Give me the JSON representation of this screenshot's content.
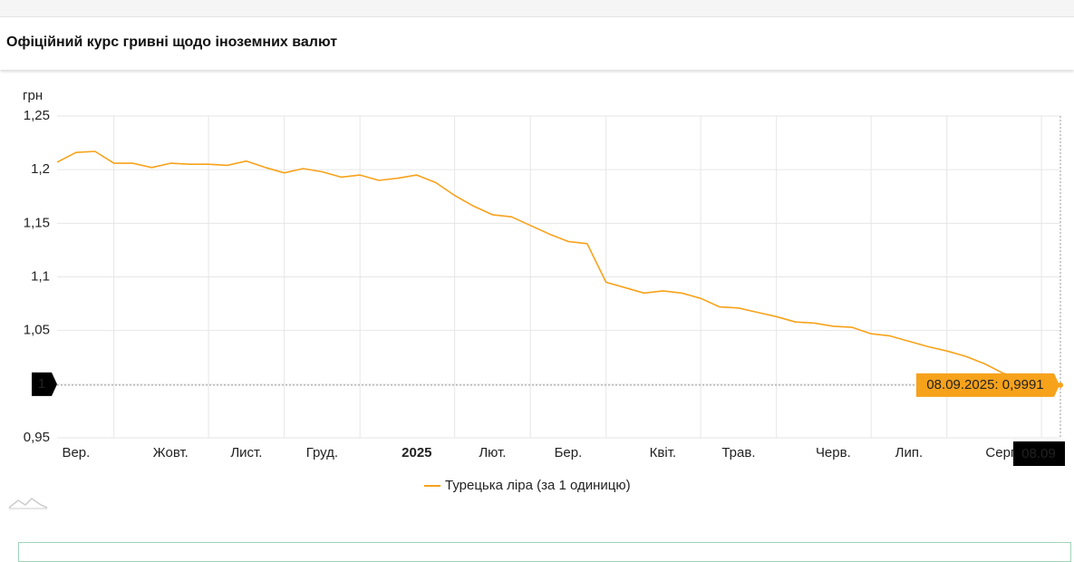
{
  "page_title": "Офіційний курс гривні щодо іноземних валют",
  "chart_data": {
    "type": "line",
    "y_label": "грн",
    "categories": [
      null,
      "Вер.",
      null,
      null,
      null,
      null,
      "Жовт.",
      null,
      null,
      null,
      "Лист.",
      null,
      null,
      null,
      "Груд.",
      null,
      null,
      null,
      null,
      "2025",
      null,
      null,
      null,
      "Лют.",
      null,
      null,
      null,
      "Бер.",
      null,
      null,
      null,
      null,
      "Квіт.",
      null,
      null,
      null,
      "Трав.",
      null,
      null,
      null,
      null,
      "Черв.",
      null,
      null,
      null,
      "Лип.",
      null,
      null,
      null,
      null,
      "Серп.",
      null,
      null,
      null
    ],
    "series": [
      {
        "name": "Турецька ліра (за 1 одиницю)",
        "color": "#f7a21b",
        "values": [
          1.207,
          1.216,
          1.217,
          1.206,
          1.206,
          1.202,
          1.206,
          1.205,
          1.205,
          1.204,
          1.208,
          1.202,
          1.197,
          1.201,
          1.198,
          1.193,
          1.195,
          1.19,
          1.192,
          1.195,
          1.188,
          1.176,
          1.166,
          1.158,
          1.156,
          1.148,
          1.14,
          1.133,
          1.131,
          1.095,
          1.09,
          1.085,
          1.087,
          1.085,
          1.08,
          1.072,
          1.071,
          1.067,
          1.063,
          1.058,
          1.057,
          1.054,
          1.053,
          1.047,
          1.045,
          1.04,
          1.035,
          1.031,
          1.026,
          1.019,
          1.01,
          1.006,
          1.002,
          0.9991
        ]
      }
    ],
    "ylim": [
      0.95,
      1.25
    ],
    "yticks": [
      {
        "value": 0.95,
        "label": "0,95"
      },
      1,
      {
        "value": 1.05,
        "label": "1,05"
      },
      {
        "value": 1.1,
        "label": "1,1"
      },
      {
        "value": 1.15,
        "label": "1,15"
      },
      {
        "value": 1.2,
        "label": "1,2"
      },
      {
        "value": 1.25,
        "label": "1,25"
      }
    ],
    "grid": true,
    "legend": "bottom",
    "tooltip": {
      "x_label": "08.09",
      "text": "08.09.2025: 0,9991"
    }
  }
}
